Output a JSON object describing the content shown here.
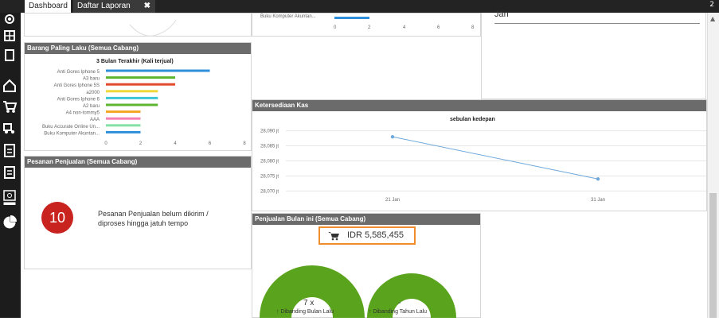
{
  "tabs": {
    "dashboard": "Dashboard",
    "daftar_laporan": "Daftar Laporan",
    "close": "✖",
    "corner": "2"
  },
  "sidebar_icons": [
    "settings-icon",
    "grid-icon",
    "document-icon",
    "home-icon",
    "cart-icon",
    "truck-icon",
    "file-icon",
    "building-icon",
    "cash-icon",
    "pie-chart-icon"
  ],
  "top_left_panel": {
    "bar_label": "Buku Komputer Akuntan...",
    "x_ticks": [
      "0",
      "2",
      "4",
      "6",
      "8"
    ]
  },
  "top_right_panel": {
    "text": "Jan"
  },
  "barang": {
    "title": "Barang Paling Laku (Semua Cabang)",
    "chart_title": "3 Bulan Terakhir (Kali terjual)"
  },
  "chart_data": [
    {
      "type": "bar",
      "title": "3 Bulan Terakhir (Kali terjual)",
      "categories": [
        "Anti Gores Iphone 5",
        "A3 baru",
        "Anti Gores Iphone 5S",
        "a2000",
        "Anti Gores Iphone 6",
        "A2 baru",
        "A4 non-tommy5",
        "AAA",
        "Buku Accurate Online Un...",
        "Buku Komputer Akuntan..."
      ],
      "values": [
        6,
        4,
        4,
        3,
        3,
        3,
        2,
        2,
        2,
        2
      ],
      "colors": [
        "#2f8fd8",
        "#5cb531",
        "#e24a2c",
        "#f0d83a",
        "#3ec6d6",
        "#5cb531",
        "#f5a623",
        "#f47fb4",
        "#83e0a7",
        "#2f8fd8"
      ],
      "x_ticks": [
        "0",
        "2",
        "4",
        "6",
        "8"
      ],
      "xlim": [
        0,
        8
      ],
      "grid": false
    },
    {
      "type": "line",
      "title": "sebulan kedepan",
      "x": [
        "21 Jan",
        "31 Jan"
      ],
      "y": [
        28088,
        28074
      ],
      "y_ticks": [
        "28,090 jt",
        "28,085 jt",
        "28,080 jt",
        "28,075 jt",
        "28,070 jt"
      ],
      "ylim": [
        28068,
        28092
      ],
      "series_color": "#6fa8dc",
      "grid": true
    }
  ],
  "kas": {
    "title": "Ketersediaan Kas",
    "chart_title": "sebulan kedepan"
  },
  "pesanan": {
    "title": "Pesanan Penjualan (Semua Cabang)",
    "count": "10",
    "description": "Pesanan Penjualan belum dikirim / diproses hingga jatuh tempo"
  },
  "penjualan": {
    "title": "Penjualan Bulan ini (Semua Cabang)",
    "amount": "IDR 5,585,455",
    "gauge1_value": "7 x",
    "gauge1_label": "↑ Dibanding Bulan Lalu",
    "gauge2_value": "-",
    "gauge2_label": "↑ Dibanding Tahun Lalu",
    "gauge_color": "#5aa31c"
  }
}
